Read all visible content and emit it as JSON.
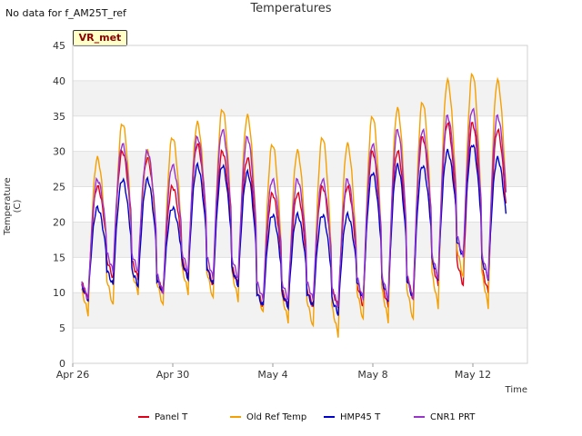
{
  "chart_data": {
    "type": "line",
    "title": "Temperatures",
    "no_data_note": "No data for f_AM25T_ref",
    "station_badge": "VR_met",
    "xlabel": "Time",
    "ylabel": "Temperature (C)",
    "ylim": [
      0,
      45
    ],
    "yticks": [
      "0",
      "5",
      "10",
      "15",
      "20",
      "25",
      "30",
      "35",
      "40",
      "45"
    ],
    "xticks": [
      {
        "label": "Apr 26",
        "day": 0
      },
      {
        "label": "Apr 30",
        "day": 4
      },
      {
        "label": "May 4",
        "day": 8
      },
      {
        "label": "May 8",
        "day": 12
      },
      {
        "label": "May 12",
        "day": 16
      }
    ],
    "xlim_days": [
      0,
      18.1
    ],
    "grid": true,
    "legend_position": "bottom",
    "series": [
      {
        "name": "Panel T",
        "color": "#e0001a",
        "daily_max": [
          25,
          30,
          29,
          25,
          31,
          30,
          29,
          24,
          24,
          25,
          25,
          30,
          30,
          32,
          34,
          34,
          33
        ],
        "daily_min": [
          9,
          12,
          12,
          10,
          12,
          11,
          11,
          8,
          8,
          8,
          8,
          8,
          8,
          9,
          11,
          11,
          10,
          13
        ]
      },
      {
        "name": "Old Ref Temp",
        "color": "#f5a000",
        "daily_max": [
          29,
          34,
          30,
          32,
          34,
          36,
          35,
          31,
          30,
          32,
          31,
          35,
          36,
          37,
          40,
          41,
          40
        ],
        "daily_min": [
          7,
          8,
          10,
          8,
          10,
          9,
          9,
          7,
          6,
          5,
          4,
          6,
          6,
          6,
          8,
          12,
          8,
          11
        ]
      },
      {
        "name": "HMP45 T",
        "color": "#0000cc",
        "daily_max": [
          22,
          26,
          26,
          22,
          28,
          28,
          27,
          21,
          21,
          21,
          21,
          27,
          28,
          28,
          30,
          31,
          29
        ],
        "daily_min": [
          9,
          11,
          11,
          10,
          12,
          11,
          11,
          8,
          8,
          8,
          7,
          9,
          9,
          9,
          12,
          15,
          12,
          14
        ]
      },
      {
        "name": "CNR1 PRT",
        "color": "#9933cc",
        "daily_max": [
          26,
          31,
          30,
          28,
          32,
          33,
          32,
          26,
          26,
          26,
          26,
          31,
          33,
          33,
          35,
          36,
          35
        ],
        "daily_min": [
          9,
          13,
          13,
          10,
          13,
          12,
          12,
          9,
          9,
          9,
          8,
          9,
          9,
          9,
          12,
          15,
          12,
          15
        ]
      }
    ]
  }
}
